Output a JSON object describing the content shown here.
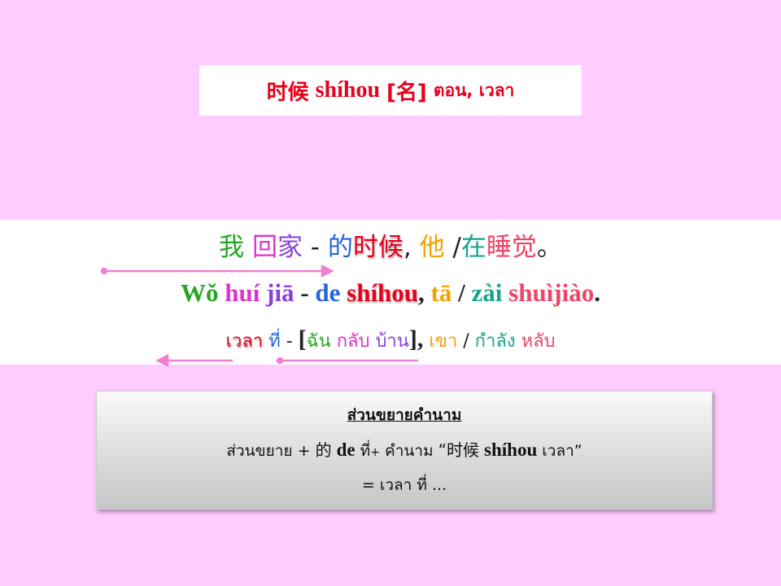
{
  "title": {
    "chinese": "时候",
    "pinyin": "shíhou",
    "pos": "[名]",
    "thai": "ตอน, เวลา"
  },
  "sentence": {
    "chinese": [
      {
        "text": "我",
        "color": "#22a822"
      },
      {
        "text": " ",
        "color": "#222222"
      },
      {
        "text": "回",
        "color": "#dd33cc"
      },
      {
        "text": "家",
        "color": "#8a42d8"
      },
      {
        "text": " - ",
        "color": "#222222"
      },
      {
        "text": "的",
        "color": "#2266dd"
      },
      {
        "text": "时候",
        "color": "#e8001c"
      },
      {
        "text": ", ",
        "color": "#222222"
      },
      {
        "text": "他",
        "color": "#f4a000"
      },
      {
        "text": " /",
        "color": "#222222"
      },
      {
        "text": "在",
        "color": "#18a48c"
      },
      {
        "text": "睡觉",
        "color": "#ee4466"
      },
      {
        "text": "。",
        "color": "#222222"
      }
    ],
    "pinyin": [
      {
        "text": "Wǒ",
        "color": "#22a822"
      },
      {
        "text": " ",
        "color": "#222222"
      },
      {
        "text": "huí",
        "color": "#dd33cc"
      },
      {
        "text": " ",
        "color": "#222222"
      },
      {
        "text": "jiā",
        "color": "#8a42d8"
      },
      {
        "text": " - ",
        "color": "#222222"
      },
      {
        "text": "de",
        "color": "#2266dd"
      },
      {
        "text": " ",
        "color": "#222222"
      },
      {
        "text": "shíhou",
        "color": "#e8001c"
      },
      {
        "text": ", ",
        "color": "#222222"
      },
      {
        "text": "tā",
        "color": "#f4a000"
      },
      {
        "text": " / ",
        "color": "#222222"
      },
      {
        "text": "zài",
        "color": "#18a48c"
      },
      {
        "text": " ",
        "color": "#222222"
      },
      {
        "text": "shuìjiào",
        "color": "#ee4466"
      },
      {
        "text": ".",
        "color": "#222222"
      }
    ],
    "thai": {
      "time": "เวลา",
      "that": "ที่",
      "dash": "-",
      "open_bracket": "[",
      "i": "ฉัน",
      "return": "กลับ",
      "home": "บ้าน",
      "close_bracket": "],",
      "he": "เขา",
      "slash": "/",
      "progressive": "กำลัง",
      "sleep": "หลับ"
    }
  },
  "note": {
    "title": "ส่วนขยายคำนาม",
    "modifier": "ส่วนขยาย",
    "plus1": "+",
    "de_char": "的",
    "de_pinyin": "de",
    "that": "ที่",
    "plus2": "+",
    "noun": "คำนาม",
    "example_open": "“时候",
    "example_pinyin": "shíhou",
    "example_thai": "เวลา”",
    "result": "= เวลา ที่ ..."
  },
  "colors": {
    "background": "#ffccff",
    "arrow": "#f080d0"
  }
}
